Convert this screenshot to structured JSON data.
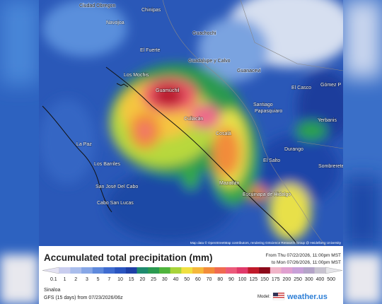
{
  "map": {
    "labels": [
      "Ciudad Obregon",
      "Chinipas",
      "Navojoa",
      "Guachochi",
      "El Fuerte",
      "Guadalupe y Calvo",
      "Guanacevi",
      "Los Mochis",
      "Guamúchil",
      "El Casco",
      "Gómez P",
      "Santiago",
      "Papasquiaro",
      "Culiacán",
      "Cosalá",
      "Durango",
      "El Salto",
      "Mazatlán",
      "Escuinapa de Hidalgo",
      "La Paz",
      "Los Barriles",
      "San José Del Cabo",
      "Cabo San Lucas",
      "Sombrerete",
      "Yerbanis"
    ],
    "attribution": "Map data © OpenStreetMap contributors, rendering GIScience Research Group @ Heidelberg University"
  },
  "legend": {
    "title": "Accumulated total precipitation (mm)",
    "from": "From Thu 07/22/2026, 11:00pm MST",
    "to": "to Mon 07/26/2026, 11:00pm MST",
    "items": [
      {
        "label": "0.1",
        "color": "#e4e2f2"
      },
      {
        "label": "1",
        "color": "#c9cdef"
      },
      {
        "label": "2",
        "color": "#a9bdec"
      },
      {
        "label": "3",
        "color": "#86a6e6"
      },
      {
        "label": "5",
        "color": "#5e89dc"
      },
      {
        "label": "7",
        "color": "#3f6cd0"
      },
      {
        "label": "10",
        "color": "#2a55c0"
      },
      {
        "label": "15",
        "color": "#1d3fa6"
      },
      {
        "label": "20",
        "color": "#1e8a6e"
      },
      {
        "label": "25",
        "color": "#2a9a50"
      },
      {
        "label": "30",
        "color": "#4fb43c"
      },
      {
        "label": "40",
        "color": "#a8d43a"
      },
      {
        "label": "50",
        "color": "#f0e040"
      },
      {
        "label": "60",
        "color": "#f5b83a"
      },
      {
        "label": "70",
        "color": "#f28c3a"
      },
      {
        "label": "80",
        "color": "#f06a50"
      },
      {
        "label": "90",
        "color": "#ec5a7a"
      },
      {
        "label": "100",
        "color": "#e03a6a"
      },
      {
        "label": "125",
        "color": "#c01a2a"
      },
      {
        "label": "150",
        "color": "#8c0a1a"
      },
      {
        "label": "175",
        "color": "#f0b4c8"
      },
      {
        "label": "200",
        "color": "#e0a0d0"
      },
      {
        "label": "250",
        "color": "#c8a0d8"
      },
      {
        "label": "300",
        "color": "#b4a4c8"
      },
      {
        "label": "400",
        "color": "#c8c4d0"
      },
      {
        "label": "500",
        "color": "#e4e4e8"
      }
    ]
  },
  "footer": {
    "region": "Sinaloa",
    "model_run": "GFS (15 days) from 07/23/2026/06z",
    "model_label": "Model:",
    "brand": "weather.us"
  }
}
